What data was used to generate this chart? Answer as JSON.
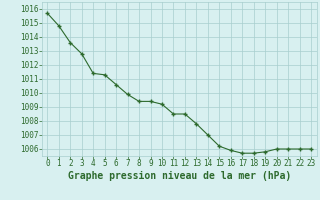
{
  "x": [
    0,
    1,
    2,
    3,
    4,
    5,
    6,
    7,
    8,
    9,
    10,
    11,
    12,
    13,
    14,
    15,
    16,
    17,
    18,
    19,
    20,
    21,
    22,
    23
  ],
  "y": [
    1015.7,
    1014.8,
    1013.6,
    1012.8,
    1011.4,
    1011.3,
    1010.6,
    1009.9,
    1009.4,
    1009.4,
    1009.2,
    1008.5,
    1008.5,
    1007.8,
    1007.0,
    1006.2,
    1005.9,
    1005.7,
    1005.7,
    1005.8,
    1006.0,
    1006.0,
    1006.0,
    1006.0
  ],
  "ylim": [
    1005.5,
    1016.5
  ],
  "yticks": [
    1006,
    1007,
    1008,
    1009,
    1010,
    1011,
    1012,
    1013,
    1014,
    1015,
    1016
  ],
  "xlim": [
    -0.5,
    23.5
  ],
  "xticks": [
    0,
    1,
    2,
    3,
    4,
    5,
    6,
    7,
    8,
    9,
    10,
    11,
    12,
    13,
    14,
    15,
    16,
    17,
    18,
    19,
    20,
    21,
    22,
    23
  ],
  "xlabel": "Graphe pression niveau de la mer (hPa)",
  "line_color": "#2d6a2d",
  "marker": "+",
  "marker_size": 3.5,
  "line_width": 0.8,
  "bg_color": "#d8f0f0",
  "grid_color": "#a8cece",
  "tick_label_fontsize": 5.5,
  "xlabel_fontsize": 7,
  "xlabel_color": "#2d6a2d",
  "ytick_label_color": "#2d6a2d",
  "xtick_label_color": "#2d6a2d"
}
